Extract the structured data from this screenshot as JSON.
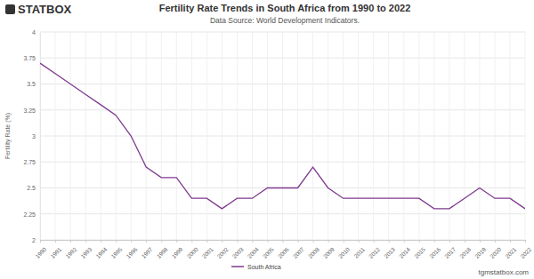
{
  "chart_data": {
    "type": "line",
    "title": "Fertility Rate Trends in South Africa from 1990 to 2022",
    "subtitle": "Data Source: World Development Indicators.",
    "y_label": "Fertility Rate (%)",
    "annotations": [
      "STATBOX",
      "tgmstatbox.com"
    ],
    "x": [
      1990,
      1991,
      1992,
      1993,
      1994,
      1995,
      1996,
      1997,
      1998,
      1999,
      2000,
      2001,
      2002,
      2003,
      2004,
      2005,
      2006,
      2007,
      2008,
      2009,
      2010,
      2011,
      2012,
      2013,
      2014,
      2015,
      2016,
      2017,
      2018,
      2019,
      2020,
      2021,
      2022
    ],
    "series": [
      {
        "name": "South Africa",
        "color": "#7e3a8e",
        "values": [
          3.7,
          3.6,
          3.5,
          3.4,
          3.3,
          3.2,
          3.0,
          2.7,
          2.6,
          2.6,
          2.4,
          2.4,
          2.3,
          2.4,
          2.4,
          2.5,
          2.5,
          2.5,
          2.7,
          2.5,
          2.4,
          2.4,
          2.4,
          2.4,
          2.4,
          2.4,
          2.3,
          2.3,
          2.4,
          2.5,
          2.4,
          2.4,
          2.3
        ]
      }
    ],
    "xlim": [
      1990,
      2022
    ],
    "xticks": [
      1990,
      1991,
      1992,
      1993,
      1994,
      1995,
      1996,
      1997,
      1998,
      1999,
      2000,
      2001,
      2002,
      2003,
      2004,
      2005,
      2006,
      2007,
      2008,
      2009,
      2010,
      2011,
      2012,
      2013,
      2014,
      2015,
      2016,
      2017,
      2018,
      2019,
      2020,
      2021,
      2022
    ],
    "ylim": [
      2,
      4
    ],
    "yticks": [
      2,
      2.25,
      2.5,
      2.75,
      3,
      3.25,
      3.5,
      3.75,
      4
    ],
    "grid": true,
    "legend": "bottom"
  }
}
